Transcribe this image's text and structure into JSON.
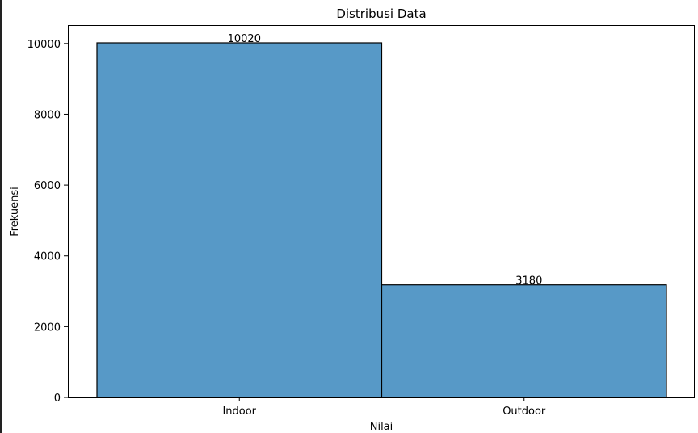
{
  "chart_data": {
    "type": "bar",
    "title": "Distribusi Data",
    "xlabel": "Nilai",
    "ylabel": "Frekuensi",
    "categories": [
      "Indoor",
      "Outdoor"
    ],
    "values": [
      10020,
      3180
    ],
    "data_labels": [
      "10020",
      "3180"
    ],
    "ylim": [
      0,
      10521
    ],
    "yticks": [
      0,
      2000,
      4000,
      6000,
      8000,
      10000
    ],
    "ytick_labels": [
      "0",
      "2000",
      "4000",
      "6000",
      "8000",
      "10000"
    ],
    "bar_color": "#5799c7",
    "edge_color": "#000000",
    "grid": false,
    "legend": "none"
  }
}
